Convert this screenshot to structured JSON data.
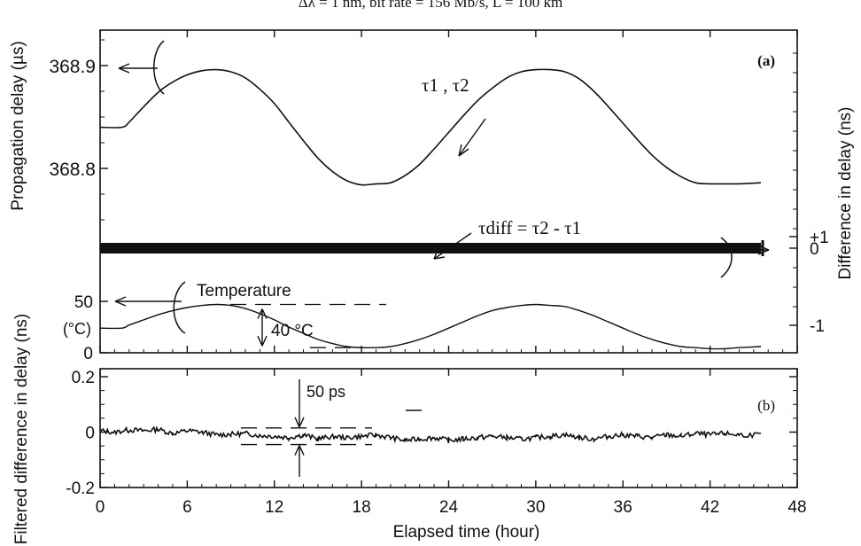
{
  "header_text": "Δλ = 1 nm, bit rate = 156 Mb/s, L = 100 km",
  "chart_data": [
    {
      "panel": "(a)",
      "type": "line",
      "xlabel": "Elapsed time (hour)",
      "xlim": [
        0,
        48
      ],
      "x_ticks": [
        "0",
        "6",
        "12",
        "18",
        "24",
        "30",
        "36",
        "42",
        "48"
      ],
      "left_axis": {
        "label": "Propagation delay (µs)",
        "ticks": [
          "368.9",
          "368.8"
        ],
        "tick_values": [
          368.9,
          368.8
        ],
        "ylim": [
          368.766,
          368.935
        ]
      },
      "right_axis": {
        "label": "Difference in delay (ns)",
        "ticks": [
          "+1",
          "0",
          "-1"
        ],
        "tick_values": [
          1,
          0,
          -1
        ],
        "ylim": [
          -1.9,
          3.25
        ]
      },
      "temperature_axis": {
        "label": "(°C)",
        "ticks": [
          "50",
          "0"
        ],
        "tick_values": [
          50,
          0
        ],
        "ylim": [
          0,
          60
        ]
      },
      "series": [
        {
          "name": "τ1 , τ2",
          "axis": "left",
          "x": [
            0,
            1.5,
            2,
            3,
            4,
            5,
            6,
            7,
            8,
            9,
            10,
            11,
            12,
            13,
            14,
            15,
            16,
            17,
            18,
            19,
            20,
            21,
            22,
            23,
            24,
            25,
            26,
            27,
            28,
            29,
            30,
            31,
            32,
            33,
            34,
            35,
            36,
            37,
            38,
            39,
            40,
            41,
            42,
            43,
            44,
            45.5
          ],
          "y": [
            368.84,
            368.84,
            368.845,
            368.86,
            368.874,
            368.884,
            368.891,
            368.895,
            368.896,
            368.894,
            368.888,
            368.877,
            368.863,
            368.845,
            368.827,
            368.81,
            368.797,
            368.788,
            368.784,
            368.785,
            368.786,
            368.793,
            368.804,
            368.819,
            368.835,
            368.851,
            368.866,
            368.878,
            368.888,
            368.894,
            368.896,
            368.896,
            368.894,
            368.887,
            368.875,
            368.86,
            368.844,
            368.828,
            368.813,
            368.801,
            368.792,
            368.786,
            368.785,
            368.785,
            368.785,
            368.786
          ]
        },
        {
          "name": "Temperature",
          "axis": "temperature",
          "x": [
            0,
            1.5,
            2,
            3,
            4,
            5,
            6,
            7,
            8,
            9,
            10,
            11,
            12,
            13,
            14,
            15,
            16,
            17,
            18,
            19,
            20,
            21,
            22,
            23,
            24,
            25,
            26,
            27,
            28,
            29,
            30,
            31,
            32,
            33,
            34,
            35,
            36,
            37,
            38,
            39,
            40,
            41,
            42,
            43,
            44,
            45.5
          ],
          "y": [
            24,
            24,
            27,
            32,
            37,
            41,
            44,
            46,
            47,
            46,
            43,
            38,
            32,
            25,
            19,
            13,
            9,
            6,
            5,
            5,
            6,
            9,
            13,
            18,
            24,
            30,
            36,
            41,
            44,
            46,
            47,
            46,
            45,
            41,
            36,
            30,
            24,
            18,
            13,
            9,
            6,
            5,
            4,
            4,
            5,
            6
          ]
        },
        {
          "name": "τdiff = τ2 - τ1",
          "axis": "right",
          "x": [
            0,
            45.5
          ],
          "y": [
            0,
            0
          ],
          "noise_band": 0.15
        }
      ],
      "annotations": {
        "panel": "(a)",
        "tau_label": "τ1 , τ2",
        "tau_diff_label": "τdiff = τ2 - τ1",
        "temperature_label": "Temperature",
        "temp_swing": "40 °C",
        "temp_swing_range": [
          5,
          47
        ]
      }
    },
    {
      "panel": "(b)",
      "type": "line",
      "xlabel": "Elapsed time (hour)",
      "ylabel": "Filtered difference in delay (ns)",
      "xlim": [
        0,
        48
      ],
      "ylim": [
        -0.2,
        0.2
      ],
      "x_ticks": [
        "0",
        "6",
        "12",
        "18",
        "24",
        "30",
        "36",
        "42",
        "48"
      ],
      "y_ticks": [
        "0.2",
        "0",
        "-0.2"
      ],
      "y_tick_values": [
        0.2,
        0,
        -0.2
      ],
      "series": [
        {
          "name": "filtered difference",
          "x": [
            0,
            1,
            2,
            3,
            4,
            5,
            6,
            7,
            8,
            9,
            10,
            11,
            12,
            13,
            14,
            15,
            16,
            17,
            18,
            19,
            20,
            21,
            22,
            23,
            24,
            25,
            26,
            27,
            28,
            29,
            30,
            31,
            32,
            33,
            34,
            35,
            36,
            37,
            38,
            39,
            40,
            41,
            42,
            43,
            44,
            45.5
          ],
          "y": [
            0.005,
            0.0,
            0.008,
            0.005,
            0.01,
            -0.005,
            0.005,
            0.0,
            -0.01,
            -0.008,
            -0.005,
            -0.012,
            -0.015,
            -0.02,
            -0.01,
            -0.025,
            -0.015,
            -0.02,
            -0.015,
            -0.01,
            -0.02,
            -0.03,
            -0.025,
            -0.02,
            -0.03,
            -0.025,
            -0.02,
            -0.015,
            -0.02,
            -0.025,
            -0.02,
            -0.015,
            -0.01,
            -0.02,
            -0.025,
            -0.015,
            -0.01,
            -0.015,
            -0.02,
            -0.01,
            -0.015,
            -0.005,
            -0.01,
            -0.005,
            -0.01,
            -0.01
          ]
        }
      ],
      "annotations": {
        "panel": "(b)",
        "swing": "50 ps"
      }
    }
  ]
}
